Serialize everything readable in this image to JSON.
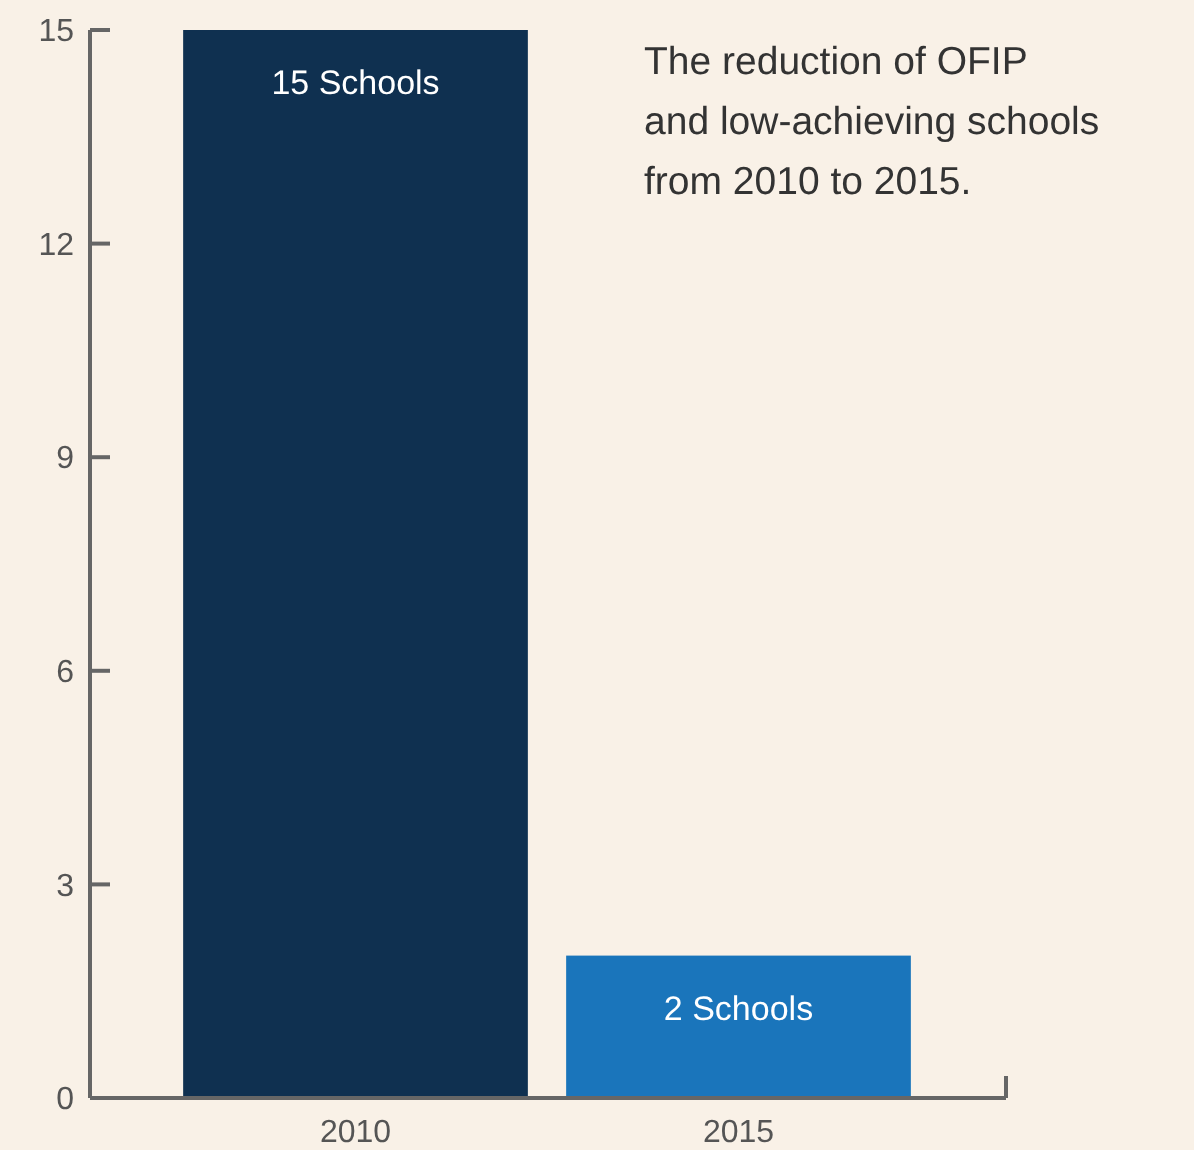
{
  "chart_data": {
    "type": "bar",
    "title": "The reduction of OFIP\nand low-achieving schools\nfrom 2010 to 2015.",
    "categories": [
      "2010",
      "2015"
    ],
    "values": [
      15,
      2
    ],
    "colors": [
      "#0f3050",
      "#1a75bb"
    ],
    "value_labels": [
      "15 Schools",
      "2 Schools"
    ],
    "ylim": [
      0,
      15
    ],
    "yticks": [
      0,
      3,
      6,
      9,
      12,
      15
    ],
    "grid": false
  }
}
